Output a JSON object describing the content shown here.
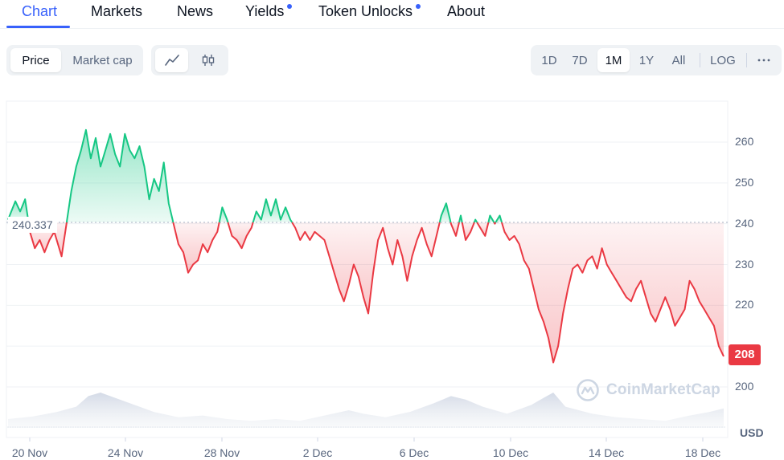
{
  "tabs": [
    {
      "label": "Chart",
      "active": true,
      "dot": false
    },
    {
      "label": "Markets",
      "active": false,
      "dot": false
    },
    {
      "label": "News",
      "active": false,
      "dot": false
    },
    {
      "label": "Yields",
      "active": false,
      "dot": true
    },
    {
      "label": "Token Unlocks",
      "active": false,
      "dot": true
    },
    {
      "label": "About",
      "active": false,
      "dot": false
    }
  ],
  "metric_toggle": {
    "options": [
      "Price",
      "Market cap"
    ],
    "selected": "Price"
  },
  "chart_type_toggle": {
    "options": [
      "line-chart-icon",
      "candlestick-icon"
    ],
    "selected": "line-chart-icon"
  },
  "range_toggle": {
    "options": [
      "1D",
      "7D",
      "1M",
      "1Y",
      "All"
    ],
    "selected": "1M",
    "log_label": "LOG",
    "more_icon": "more-horizontal-icon"
  },
  "colors": {
    "accent": "#3861fb",
    "up": "#16c784",
    "down": "#ea3943",
    "grid": "#eff2f5",
    "label": "#58667e"
  },
  "watermark": "CoinMarketCap",
  "chart_data": {
    "type": "area",
    "currency": "USD",
    "baseline": 240.337,
    "baseline_label": "240.337",
    "current_price_label": "208",
    "y_ticks": [
      200,
      210,
      220,
      230,
      240,
      250,
      260
    ],
    "y_tick_labels": [
      "200",
      "",
      "220",
      "230",
      "240",
      "250",
      "260"
    ],
    "y_range": [
      196,
      264
    ],
    "x_ticks": [
      "20 Nov",
      "24 Nov",
      "28 Nov",
      "2 Dec",
      "6 Dec",
      "10 Dec",
      "14 Dec",
      "18 Dec"
    ],
    "x_range_days": [
      0,
      29.5
    ],
    "price_series": [
      [
        0.0,
        241.0
      ],
      [
        0.3,
        245.5
      ],
      [
        0.5,
        243.0
      ],
      [
        0.7,
        246.0
      ],
      [
        0.9,
        238.0
      ],
      [
        1.1,
        234.0
      ],
      [
        1.3,
        236.0
      ],
      [
        1.5,
        233.0
      ],
      [
        1.7,
        236.0
      ],
      [
        1.9,
        238.0
      ],
      [
        2.1,
        234.0
      ],
      [
        2.2,
        232.0
      ],
      [
        2.4,
        240.0
      ],
      [
        2.6,
        248.0
      ],
      [
        2.8,
        254.0
      ],
      [
        3.0,
        258.0
      ],
      [
        3.2,
        263.0
      ],
      [
        3.4,
        256.0
      ],
      [
        3.6,
        261.0
      ],
      [
        3.8,
        254.0
      ],
      [
        4.0,
        258.0
      ],
      [
        4.2,
        262.0
      ],
      [
        4.4,
        257.0
      ],
      [
        4.6,
        254.0
      ],
      [
        4.8,
        262.0
      ],
      [
        5.0,
        258.0
      ],
      [
        5.2,
        256.0
      ],
      [
        5.4,
        259.0
      ],
      [
        5.6,
        254.0
      ],
      [
        5.8,
        246.0
      ],
      [
        6.0,
        251.0
      ],
      [
        6.2,
        248.0
      ],
      [
        6.4,
        255.0
      ],
      [
        6.6,
        245.0
      ],
      [
        6.8,
        240.0
      ],
      [
        7.0,
        235.0
      ],
      [
        7.2,
        233.0
      ],
      [
        7.4,
        228.0
      ],
      [
        7.6,
        230.0
      ],
      [
        7.8,
        231.0
      ],
      [
        8.0,
        235.0
      ],
      [
        8.2,
        233.0
      ],
      [
        8.4,
        236.0
      ],
      [
        8.6,
        238.0
      ],
      [
        8.8,
        244.0
      ],
      [
        9.0,
        241.0
      ],
      [
        9.2,
        237.0
      ],
      [
        9.4,
        236.0
      ],
      [
        9.6,
        234.0
      ],
      [
        9.8,
        237.0
      ],
      [
        10.0,
        239.0
      ],
      [
        10.2,
        243.0
      ],
      [
        10.4,
        241.0
      ],
      [
        10.6,
        246.0
      ],
      [
        10.8,
        242.0
      ],
      [
        11.0,
        246.0
      ],
      [
        11.2,
        241.0
      ],
      [
        11.4,
        244.0
      ],
      [
        11.6,
        241.0
      ],
      [
        11.8,
        239.0
      ],
      [
        12.0,
        236.0
      ],
      [
        12.2,
        238.0
      ],
      [
        12.4,
        236.0
      ],
      [
        12.6,
        238.0
      ],
      [
        12.8,
        237.0
      ],
      [
        13.0,
        236.0
      ],
      [
        13.2,
        232.0
      ],
      [
        13.4,
        228.0
      ],
      [
        13.6,
        224.0
      ],
      [
        13.8,
        221.0
      ],
      [
        14.0,
        225.0
      ],
      [
        14.2,
        230.0
      ],
      [
        14.4,
        227.0
      ],
      [
        14.6,
        222.0
      ],
      [
        14.8,
        218.0
      ],
      [
        15.0,
        228.0
      ],
      [
        15.2,
        236.0
      ],
      [
        15.4,
        239.0
      ],
      [
        15.6,
        234.0
      ],
      [
        15.8,
        230.0
      ],
      [
        16.0,
        236.0
      ],
      [
        16.2,
        232.0
      ],
      [
        16.4,
        226.0
      ],
      [
        16.6,
        232.0
      ],
      [
        16.8,
        236.0
      ],
      [
        17.0,
        239.0
      ],
      [
        17.2,
        235.0
      ],
      [
        17.4,
        232.0
      ],
      [
        17.6,
        237.0
      ],
      [
        17.8,
        242.0
      ],
      [
        18.0,
        245.0
      ],
      [
        18.2,
        240.0
      ],
      [
        18.4,
        237.0
      ],
      [
        18.6,
        242.0
      ],
      [
        18.8,
        236.0
      ],
      [
        19.0,
        238.0
      ],
      [
        19.2,
        241.0
      ],
      [
        19.4,
        239.0
      ],
      [
        19.6,
        237.0
      ],
      [
        19.8,
        242.0
      ],
      [
        20.0,
        240.0
      ],
      [
        20.2,
        242.0
      ],
      [
        20.4,
        238.0
      ],
      [
        20.6,
        236.0
      ],
      [
        20.8,
        237.0
      ],
      [
        21.0,
        235.0
      ],
      [
        21.2,
        231.0
      ],
      [
        21.4,
        229.0
      ],
      [
        21.6,
        224.0
      ],
      [
        21.8,
        219.0
      ],
      [
        22.0,
        216.0
      ],
      [
        22.2,
        212.0
      ],
      [
        22.4,
        206.0
      ],
      [
        22.6,
        210.0
      ],
      [
        22.8,
        218.0
      ],
      [
        23.0,
        224.0
      ],
      [
        23.2,
        229.0
      ],
      [
        23.4,
        230.0
      ],
      [
        23.6,
        228.0
      ],
      [
        23.8,
        231.0
      ],
      [
        24.0,
        232.0
      ],
      [
        24.2,
        229.0
      ],
      [
        24.4,
        234.0
      ],
      [
        24.6,
        230.0
      ],
      [
        24.8,
        228.0
      ],
      [
        25.0,
        226.0
      ],
      [
        25.2,
        224.0
      ],
      [
        25.4,
        222.0
      ],
      [
        25.6,
        221.0
      ],
      [
        25.8,
        224.0
      ],
      [
        26.0,
        226.0
      ],
      [
        26.2,
        222.0
      ],
      [
        26.4,
        218.0
      ],
      [
        26.6,
        216.0
      ],
      [
        26.8,
        219.0
      ],
      [
        27.0,
        222.0
      ],
      [
        27.2,
        219.0
      ],
      [
        27.4,
        215.0
      ],
      [
        27.6,
        217.0
      ],
      [
        27.8,
        219.0
      ],
      [
        28.0,
        226.0
      ],
      [
        28.2,
        224.0
      ],
      [
        28.4,
        221.0
      ],
      [
        28.6,
        219.0
      ],
      [
        28.8,
        217.0
      ],
      [
        29.0,
        215.0
      ],
      [
        29.2,
        210.0
      ],
      [
        29.4,
        207.5
      ]
    ],
    "volume_profile": [
      [
        0.0,
        0.25
      ],
      [
        1.0,
        0.32
      ],
      [
        2.0,
        0.45
      ],
      [
        2.8,
        0.6
      ],
      [
        3.3,
        0.9
      ],
      [
        3.8,
        1.0
      ],
      [
        4.4,
        0.85
      ],
      [
        5.0,
        0.7
      ],
      [
        6.0,
        0.45
      ],
      [
        7.0,
        0.3
      ],
      [
        8.0,
        0.35
      ],
      [
        9.0,
        0.25
      ],
      [
        10.0,
        0.2
      ],
      [
        11.0,
        0.25
      ],
      [
        12.0,
        0.2
      ],
      [
        13.0,
        0.35
      ],
      [
        14.0,
        0.5
      ],
      [
        14.6,
        0.4
      ],
      [
        15.5,
        0.3
      ],
      [
        16.5,
        0.45
      ],
      [
        17.5,
        0.7
      ],
      [
        18.2,
        0.9
      ],
      [
        18.8,
        0.8
      ],
      [
        19.5,
        0.6
      ],
      [
        20.5,
        0.4
      ],
      [
        21.5,
        0.65
      ],
      [
        22.0,
        0.85
      ],
      [
        22.4,
        1.0
      ],
      [
        22.9,
        0.6
      ],
      [
        24.0,
        0.4
      ],
      [
        25.0,
        0.3
      ],
      [
        26.0,
        0.25
      ],
      [
        27.0,
        0.2
      ],
      [
        28.0,
        0.35
      ],
      [
        28.8,
        0.45
      ],
      [
        29.4,
        0.55
      ]
    ]
  }
}
